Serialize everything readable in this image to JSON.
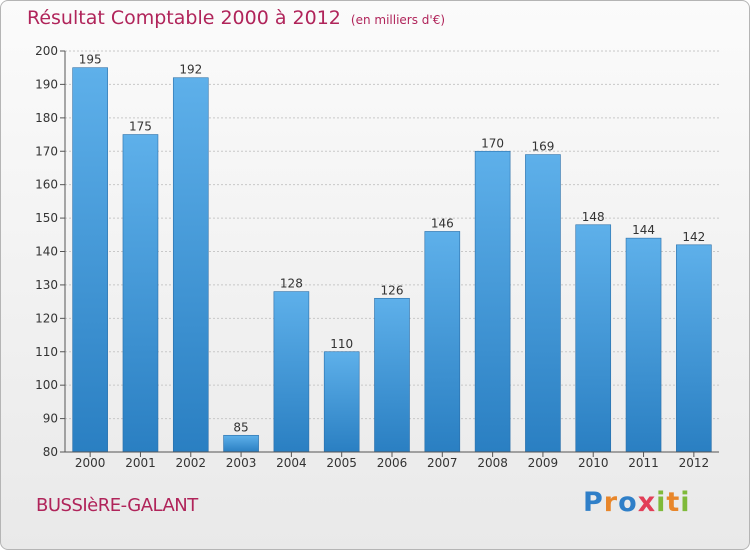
{
  "chart_data": {
    "type": "bar",
    "title": "Résultat Comptable 2000 à 2012",
    "subtitle": "(en milliers d'€)",
    "categories": [
      "2000",
      "2001",
      "2002",
      "2003",
      "2004",
      "2005",
      "2006",
      "2007",
      "2008",
      "2009",
      "2010",
      "2011",
      "2012"
    ],
    "values": [
      195,
      175,
      192,
      85,
      128,
      110,
      126,
      146,
      170,
      169,
      148,
      144,
      142
    ],
    "yticks": [
      80,
      90,
      100,
      110,
      120,
      130,
      140,
      150,
      160,
      170,
      180,
      190,
      200
    ],
    "ylim": [
      80,
      200
    ],
    "grid": true,
    "bar_color": "#3a8fd6"
  },
  "footer": {
    "commune": "BUSSIèRE-GALANT",
    "logo": {
      "letters": [
        "P",
        "r",
        "o",
        "x",
        "i",
        "t",
        "i"
      ],
      "colors": [
        "#2f7fc8",
        "#e8862a",
        "#2f7fc8",
        "#e23e57",
        "#7fba3a",
        "#e8862a",
        "#7fba3a"
      ]
    }
  }
}
